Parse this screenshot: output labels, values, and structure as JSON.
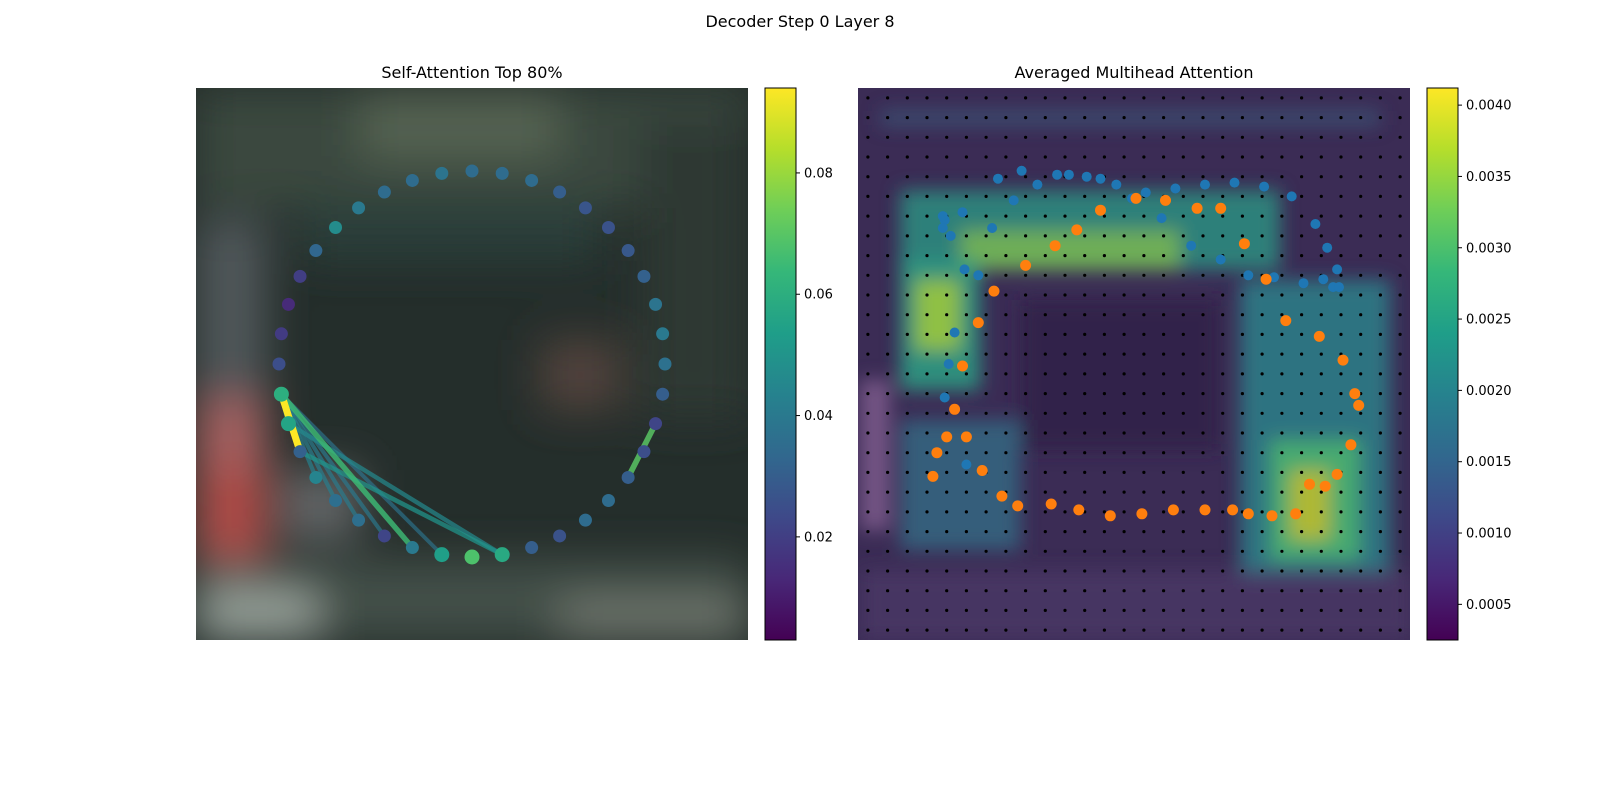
{
  "figure": {
    "suptitle": "Decoder Step 0 Layer 8"
  },
  "colors": {
    "viridis": [
      "#440154",
      "#482878",
      "#3e4989",
      "#31688e",
      "#26828e",
      "#1f9e89",
      "#35b779",
      "#6ece58",
      "#b5de2b",
      "#fde725"
    ],
    "series_blue": "#1f77b4",
    "series_orange": "#ff7f0e",
    "grid_dot": "#000000",
    "photo_dark": "#1f2624",
    "photo_teal": "#3a5048"
  },
  "chart_data": [
    {
      "type": "scatter",
      "title": "Self-Attention Top 80%",
      "background": "blurred photo of street scene",
      "points": {
        "count": 40,
        "layout": "ring",
        "colorbar_values": [
          0.035,
          0.038,
          0.035,
          0.035,
          0.04,
          0.047,
          0.033,
          0.02,
          0.014,
          0.019,
          0.025,
          0.06,
          0.056,
          0.031,
          0.044,
          0.036,
          0.036,
          0.022,
          0.04,
          0.054,
          0.068,
          0.058,
          0.03,
          0.026,
          0.035,
          0.035,
          0.03,
          0.025,
          0.022,
          0.03,
          0.037,
          0.04,
          0.038,
          0.031,
          0.028,
          0.026,
          0.027,
          0.03,
          0.035,
          0.035
        ]
      },
      "lines": [
        {
          "from": 11,
          "to": 13,
          "weight": 0.094
        },
        {
          "from": 11,
          "to": 18,
          "weight": 0.065
        },
        {
          "from": 11,
          "to": 12,
          "weight": 0.05
        },
        {
          "from": 11,
          "to": 14,
          "weight": 0.043
        },
        {
          "from": 11,
          "to": 15,
          "weight": 0.042
        },
        {
          "from": 11,
          "to": 16,
          "weight": 0.041
        },
        {
          "from": 11,
          "to": 17,
          "weight": 0.04
        },
        {
          "from": 11,
          "to": 19,
          "weight": 0.038
        },
        {
          "from": 13,
          "to": 21,
          "weight": 0.05
        },
        {
          "from": 12,
          "to": 21,
          "weight": 0.046
        },
        {
          "from": 28,
          "to": 26,
          "weight": 0.07
        }
      ],
      "colorbar": {
        "min": 0.003,
        "max": 0.094,
        "ticks": [
          0.02,
          0.04,
          0.06,
          0.08
        ],
        "tick_labels": [
          "0.02",
          "0.04",
          "0.06",
          "0.08"
        ],
        "colormap": "viridis"
      }
    },
    {
      "type": "heatmap",
      "title": "Averaged Multihead Attention",
      "grid": {
        "rows": 28,
        "cols": 28,
        "marker": "small black dot at each cell center"
      },
      "series": [
        {
          "color": "blue",
          "x": [
            5.5,
            4.4,
            4.6,
            4.9,
            6.1,
            6.8,
            7.9,
            9.1,
            10.7,
            12.3,
            13.9,
            15.4,
            16.9,
            18.4,
            19.8,
            21.1,
            22.6,
            23.6,
            24.1,
            24.4,
            24.3,
            23.8,
            23.2,
            22.0,
            20.6,
            19.1,
            17.6,
            16.1,
            14.6,
            13.1,
            11.6,
            10.1,
            8.3,
            7.1,
            5.3,
            4.4,
            4.3,
            4.3,
            4.7,
            5.4
          ],
          "y": [
            8.9,
            12.3,
            14.0,
            15.6,
            18.5,
            20.9,
            22.3,
            23.1,
            23.6,
            23.4,
            22.4,
            21.4,
            20.0,
            19.3,
            18.5,
            18.4,
            18.1,
            18.3,
            17.9,
            17.9,
            18.8,
            19.9,
            21.1,
            22.5,
            23.0,
            23.2,
            23.1,
            22.9,
            22.7,
            23.1,
            23.5,
            23.6,
            23.8,
            23.4,
            21.7,
            21.3,
            20.9,
            21.5,
            20.5,
            18.8
          ]
        },
        {
          "color": "orange",
          "x": [
            3.8,
            4.0,
            4.5,
            4.9,
            5.3,
            6.1,
            6.9,
            8.5,
            10.0,
            11.1,
            12.3,
            14.1,
            15.6,
            17.2,
            18.4,
            19.6,
            20.7,
            21.7,
            23.4,
            24.6,
            25.2,
            25.4,
            25.0,
            24.3,
            23.7,
            22.9,
            22.2,
            21.0,
            19.8,
            19.0,
            17.6,
            16.0,
            14.4,
            12.8,
            11.2,
            9.8,
            8.1,
            7.3,
            6.3,
            5.5
          ],
          "y": [
            8.3,
            9.5,
            10.3,
            11.7,
            13.9,
            16.1,
            17.7,
            19.0,
            20.0,
            20.8,
            21.8,
            22.4,
            22.3,
            21.9,
            21.9,
            20.1,
            18.3,
            16.2,
            15.4,
            14.2,
            12.5,
            11.9,
            9.9,
            8.4,
            7.8,
            7.9,
            6.4,
            6.3,
            6.4,
            6.6,
            6.6,
            6.6,
            6.4,
            6.3,
            6.6,
            6.9,
            6.8,
            7.3,
            8.6,
            10.3
          ]
        }
      ],
      "colorbar": {
        "min": 0.00025,
        "max": 0.00412,
        "ticks": [
          0.0005,
          0.001,
          0.0015,
          0.002,
          0.0025,
          0.003,
          0.0035,
          0.004
        ],
        "tick_labels": [
          "0.0005",
          "0.0010",
          "0.0015",
          "0.0020",
          "0.0025",
          "0.0030",
          "0.0035",
          "0.0040"
        ],
        "colormap": "viridis"
      }
    }
  ]
}
